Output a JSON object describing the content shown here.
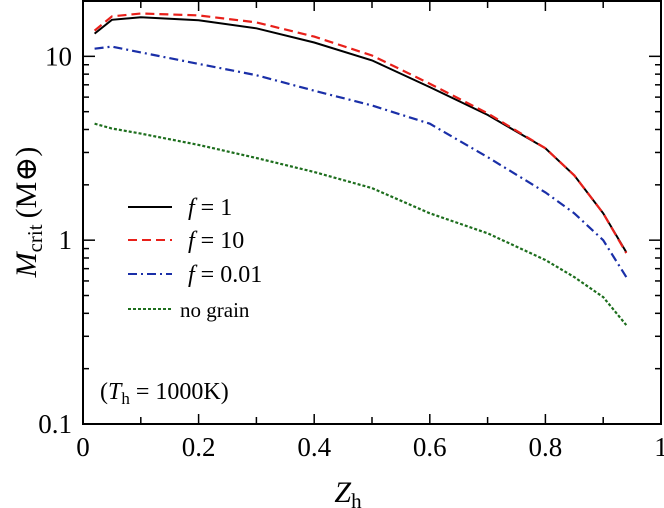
{
  "chart_data": {
    "type": "line",
    "xlabel": "Z",
    "xlabel_sub": "h",
    "ylabel": "M",
    "ylabel_sub": "crit",
    "ylabel_unit": "(M⊕)",
    "xlim": [
      0,
      1
    ],
    "ylim": [
      0.1,
      20
    ],
    "yscale": "log",
    "grid": false,
    "x_ticks": [
      "0",
      "0.2",
      "0.4",
      "0.6",
      "0.8",
      "1"
    ],
    "x_tick_values": [
      0,
      0.2,
      0.4,
      0.6,
      0.8,
      1
    ],
    "y_ticks": [
      "0.1",
      "1",
      "10"
    ],
    "y_tick_values": [
      0.1,
      1,
      10
    ],
    "annotation": {
      "prefix": "(",
      "var": "T",
      "sub": "h",
      "rest": " = 1000K)"
    },
    "legend_placement": "center-left",
    "x": [
      0.02,
      0.05,
      0.1,
      0.2,
      0.3,
      0.4,
      0.5,
      0.6,
      0.7,
      0.8,
      0.85,
      0.9,
      0.94
    ],
    "series": [
      {
        "name": "f = 1",
        "name_var": "f",
        "name_rest": " = 1",
        "color": "#000000",
        "dash": "solid",
        "values": [
          13.3,
          15.8,
          16.3,
          15.7,
          14.2,
          11.9,
          9.5,
          6.8,
          4.8,
          3.16,
          2.25,
          1.4,
          0.86
        ]
      },
      {
        "name": "f = 10",
        "name_var": "f",
        "name_rest": " = 10",
        "color": "#e8201a",
        "dash": "dashed",
        "values": [
          13.8,
          16.5,
          17.1,
          16.7,
          15.3,
          12.8,
          10.1,
          7.1,
          4.9,
          3.16,
          2.25,
          1.4,
          0.85
        ]
      },
      {
        "name": "f = 0.01",
        "name_var": "f",
        "name_rest": " = 0.01",
        "color": "#1a2fa8",
        "dash": "dashdot",
        "values": [
          11.0,
          11.3,
          10.5,
          9.1,
          7.9,
          6.5,
          5.4,
          4.3,
          2.83,
          1.82,
          1.4,
          1.0,
          0.63
        ]
      },
      {
        "name": "no grain",
        "name_var": "",
        "name_rest": "no grain",
        "color": "#1d6e1d",
        "dash": "dotted",
        "values": [
          4.3,
          4.05,
          3.8,
          3.3,
          2.8,
          2.35,
          1.92,
          1.4,
          1.09,
          0.78,
          0.63,
          0.49,
          0.345
        ]
      }
    ]
  }
}
